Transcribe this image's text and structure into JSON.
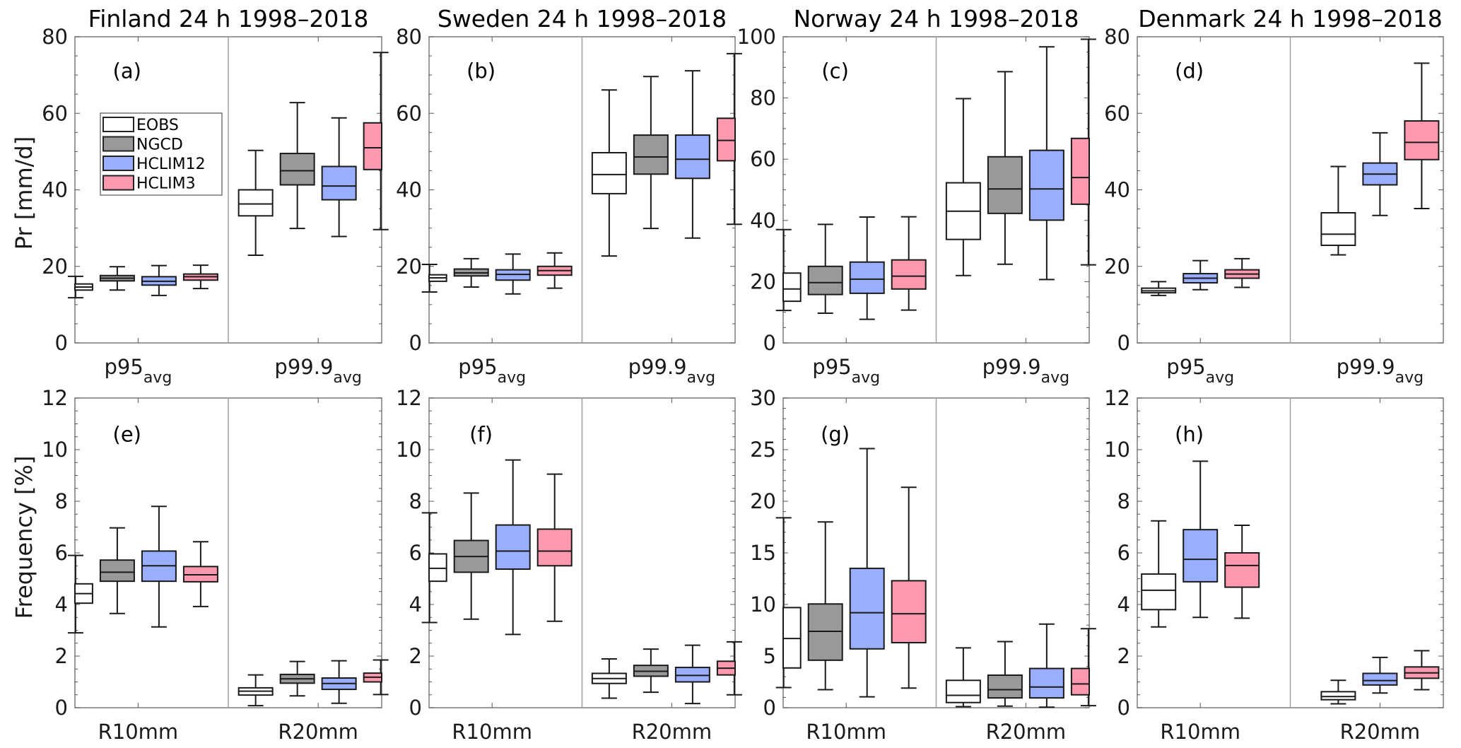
{
  "chart_data": {
    "type": "box",
    "legend": {
      "placement": "inside panel (a), upper-left",
      "entries": [
        {
          "name": "EOBS",
          "color": "#ffffff"
        },
        {
          "name": "NGCD",
          "color": "#999999"
        },
        {
          "name": "HCLIM12",
          "color": "#99aefc"
        },
        {
          "name": "HCLIM3",
          "color": "#fd99ae"
        }
      ]
    },
    "series_colors": {
      "EOBS": "#ffffff",
      "NGCD": "#999999",
      "HCLIM12": "#99aefc",
      "HCLIM3": "#fd99ae"
    },
    "row_ylabels": [
      "Pr [mm/d]",
      "Frequency [%]"
    ],
    "panels": [
      {
        "letter": "(a)",
        "title": "Finland 24 h 1998–2018",
        "row": 0,
        "col": 0,
        "ylim": [
          0,
          80
        ],
        "yticks": [
          0,
          20,
          40,
          60,
          80
        ],
        "minor_step": 5,
        "categories": [
          {
            "main": "p95",
            "sub": "avg"
          },
          {
            "main": "p99.9",
            "sub": "avg"
          }
        ],
        "groups": [
          [
            {
              "series": "EOBS",
              "min": 11.8,
              "q1": 13.8,
              "median": 14.6,
              "q3": 15.4,
              "max": 17.4
            },
            {
              "series": "NGCD",
              "min": 13.8,
              "q1": 16.2,
              "median": 16.9,
              "q3": 17.6,
              "max": 19.9
            },
            {
              "series": "HCLIM12",
              "min": 12.4,
              "q1": 15.1,
              "median": 16.1,
              "q3": 17.3,
              "max": 20.2
            },
            {
              "series": "HCLIM3",
              "min": 14.2,
              "q1": 16.4,
              "median": 17.3,
              "q3": 18.0,
              "max": 20.3
            }
          ],
          [
            {
              "series": "EOBS",
              "min": 22.9,
              "q1": 33.2,
              "median": 36.3,
              "q3": 40.0,
              "max": 50.3
            },
            {
              "series": "NGCD",
              "min": 29.9,
              "q1": 41.3,
              "median": 45.0,
              "q3": 49.5,
              "max": 62.8
            },
            {
              "series": "HCLIM12",
              "min": 27.8,
              "q1": 37.4,
              "median": 41.0,
              "q3": 46.1,
              "max": 58.8
            },
            {
              "series": "HCLIM3",
              "min": 29.6,
              "q1": 45.3,
              "median": 51.0,
              "q3": 57.5,
              "max": 75.9
            }
          ]
        ]
      },
      {
        "letter": "(b)",
        "title": "Sweden 24 h 1998–2018",
        "row": 0,
        "col": 1,
        "ylim": [
          0,
          80
        ],
        "yticks": [
          0,
          20,
          40,
          60,
          80
        ],
        "minor_step": 5,
        "categories": [
          {
            "main": "p95",
            "sub": "avg"
          },
          {
            "main": "p99.9",
            "sub": "avg"
          }
        ],
        "groups": [
          [
            {
              "series": "EOBS",
              "min": 13.3,
              "q1": 16.1,
              "median": 17.0,
              "q3": 17.8,
              "max": 20.5
            },
            {
              "series": "NGCD",
              "min": 14.6,
              "q1": 17.5,
              "median": 18.3,
              "q3": 19.3,
              "max": 22.0
            },
            {
              "series": "HCLIM12",
              "min": 12.8,
              "q1": 16.4,
              "median": 17.9,
              "q3": 19.1,
              "max": 23.2
            },
            {
              "series": "HCLIM3",
              "min": 14.3,
              "q1": 17.7,
              "median": 18.9,
              "q3": 20.0,
              "max": 23.5
            }
          ],
          [
            {
              "series": "EOBS",
              "min": 22.7,
              "q1": 39.0,
              "median": 44.0,
              "q3": 49.7,
              "max": 66.1
            },
            {
              "series": "NGCD",
              "min": 29.9,
              "q1": 44.1,
              "median": 48.6,
              "q3": 54.3,
              "max": 69.6
            },
            {
              "series": "HCLIM12",
              "min": 27.4,
              "q1": 43.0,
              "median": 48.0,
              "q3": 54.3,
              "max": 71.1
            },
            {
              "series": "HCLIM3",
              "min": 31.0,
              "q1": 47.6,
              "median": 52.9,
              "q3": 58.7,
              "max": 75.6
            }
          ]
        ]
      },
      {
        "letter": "(c)",
        "title": "Norway 24 h 1998–2018",
        "row": 0,
        "col": 2,
        "ylim": [
          0,
          100
        ],
        "yticks": [
          0,
          20,
          40,
          60,
          80,
          100
        ],
        "minor_step": 5,
        "categories": [
          {
            "main": "p95",
            "sub": "avg"
          },
          {
            "main": "p99.9",
            "sub": "avg"
          }
        ],
        "groups": [
          [
            {
              "series": "EOBS",
              "min": 10.6,
              "q1": 13.6,
              "median": 17.6,
              "q3": 22.8,
              "max": 37.0
            },
            {
              "series": "NGCD",
              "min": 9.7,
              "q1": 15.8,
              "median": 19.7,
              "q3": 25.0,
              "max": 38.7
            },
            {
              "series": "HCLIM12",
              "min": 7.7,
              "q1": 16.2,
              "median": 20.8,
              "q3": 26.4,
              "max": 41.1
            },
            {
              "series": "HCLIM3",
              "min": 10.7,
              "q1": 17.6,
              "median": 21.8,
              "q3": 27.1,
              "max": 41.2
            }
          ],
          [
            {
              "series": "EOBS",
              "min": 22.0,
              "q1": 33.8,
              "median": 43.0,
              "q3": 52.3,
              "max": 79.8
            },
            {
              "series": "NGCD",
              "min": 25.7,
              "q1": 42.3,
              "median": 50.3,
              "q3": 60.8,
              "max": 88.6
            },
            {
              "series": "HCLIM12",
              "min": 20.7,
              "q1": 40.1,
              "median": 50.3,
              "q3": 62.9,
              "max": 96.7
            },
            {
              "series": "HCLIM3",
              "min": 25.5,
              "q1": 45.3,
              "median": 54.0,
              "q3": 66.8,
              "max": 99.2
            }
          ]
        ]
      },
      {
        "letter": "(d)",
        "title": "Denmark 24 h 1998–2018",
        "row": 0,
        "col": 3,
        "ylim": [
          0,
          80
        ],
        "yticks": [
          0,
          20,
          40,
          60,
          80
        ],
        "minor_step": 5,
        "categories": [
          {
            "main": "p95",
            "sub": "avg"
          },
          {
            "main": "p99.9",
            "sub": "avg"
          }
        ],
        "groups": [
          [
            {
              "series": "EOBS",
              "min": 12.4,
              "q1": 13.1,
              "median": 13.6,
              "q3": 14.3,
              "max": 16.0
            },
            {
              "series": "HCLIM12",
              "min": 13.9,
              "q1": 15.7,
              "median": 16.9,
              "q3": 18.1,
              "max": 21.5
            },
            {
              "series": "HCLIM3",
              "min": 14.5,
              "q1": 16.9,
              "median": 18.0,
              "q3": 19.1,
              "max": 22.0
            }
          ],
          [
            {
              "series": "EOBS",
              "min": 23.0,
              "q1": 25.5,
              "median": 28.4,
              "q3": 34.0,
              "max": 46.1
            },
            {
              "series": "HCLIM12",
              "min": 33.3,
              "q1": 41.3,
              "median": 44.1,
              "q3": 47.0,
              "max": 54.9
            },
            {
              "series": "HCLIM3",
              "min": 35.1,
              "q1": 47.9,
              "median": 52.4,
              "q3": 58.0,
              "max": 73.1
            }
          ]
        ]
      },
      {
        "letter": "(e)",
        "title": "",
        "row": 1,
        "col": 0,
        "ylim": [
          0,
          12
        ],
        "yticks": [
          0,
          2,
          4,
          6,
          8,
          10,
          12
        ],
        "minor_step": 0.5,
        "categories": [
          {
            "main": "R10mm",
            "sub": ""
          },
          {
            "main": "R20mm",
            "sub": ""
          }
        ],
        "groups": [
          [
            {
              "series": "EOBS",
              "min": 2.9,
              "q1": 4.05,
              "median": 4.42,
              "q3": 4.8,
              "max": 5.9
            },
            {
              "series": "NGCD",
              "min": 3.65,
              "q1": 4.9,
              "median": 5.25,
              "q3": 5.72,
              "max": 6.97
            },
            {
              "series": "HCLIM12",
              "min": 3.13,
              "q1": 4.9,
              "median": 5.5,
              "q3": 6.07,
              "max": 7.8
            },
            {
              "series": "HCLIM3",
              "min": 3.92,
              "q1": 4.88,
              "median": 5.15,
              "q3": 5.47,
              "max": 6.43
            }
          ],
          [
            {
              "series": "EOBS",
              "min": 0.08,
              "q1": 0.49,
              "median": 0.64,
              "q3": 0.77,
              "max": 1.27
            },
            {
              "series": "NGCD",
              "min": 0.46,
              "q1": 0.95,
              "median": 1.12,
              "q3": 1.29,
              "max": 1.79
            },
            {
              "series": "HCLIM12",
              "min": 0.17,
              "q1": 0.71,
              "median": 0.94,
              "q3": 1.15,
              "max": 1.82
            },
            {
              "series": "HCLIM3",
              "min": 0.51,
              "q1": 1.0,
              "median": 1.18,
              "q3": 1.34,
              "max": 1.85
            }
          ]
        ]
      },
      {
        "letter": "(f)",
        "title": "",
        "row": 1,
        "col": 1,
        "ylim": [
          0,
          12
        ],
        "yticks": [
          0,
          2,
          4,
          6,
          8,
          10,
          12
        ],
        "minor_step": 0.5,
        "categories": [
          {
            "main": "R10mm",
            "sub": ""
          },
          {
            "main": "R20mm",
            "sub": ""
          }
        ],
        "groups": [
          [
            {
              "series": "EOBS",
              "min": 3.3,
              "q1": 4.9,
              "median": 5.4,
              "q3": 5.96,
              "max": 7.55
            },
            {
              "series": "NGCD",
              "min": 3.43,
              "q1": 5.25,
              "median": 5.86,
              "q3": 6.48,
              "max": 8.32
            },
            {
              "series": "HCLIM12",
              "min": 2.84,
              "q1": 5.37,
              "median": 6.07,
              "q3": 7.08,
              "max": 9.6
            },
            {
              "series": "HCLIM3",
              "min": 3.35,
              "q1": 5.5,
              "median": 6.07,
              "q3": 6.92,
              "max": 9.05
            }
          ],
          [
            {
              "series": "EOBS",
              "min": 0.37,
              "q1": 0.94,
              "median": 1.13,
              "q3": 1.33,
              "max": 1.89
            },
            {
              "series": "NGCD",
              "min": 0.6,
              "q1": 1.22,
              "median": 1.41,
              "q3": 1.64,
              "max": 2.27
            },
            {
              "series": "HCLIM12",
              "min": 0.16,
              "q1": 1.0,
              "median": 1.25,
              "q3": 1.56,
              "max": 2.42
            },
            {
              "series": "HCLIM3",
              "min": 0.5,
              "q1": 1.27,
              "median": 1.53,
              "q3": 1.8,
              "max": 2.55
            }
          ]
        ]
      },
      {
        "letter": "(g)",
        "title": "",
        "row": 1,
        "col": 2,
        "ylim": [
          0,
          30
        ],
        "yticks": [
          0,
          5,
          10,
          15,
          20,
          25,
          30
        ],
        "minor_step": 1,
        "categories": [
          {
            "main": "R10mm",
            "sub": ""
          },
          {
            "main": "R20mm",
            "sub": ""
          }
        ],
        "groups": [
          [
            {
              "series": "EOBS",
              "min": 1.95,
              "q1": 3.85,
              "median": 6.7,
              "q3": 9.7,
              "max": 18.4
            },
            {
              "series": "NGCD",
              "min": 1.75,
              "q1": 4.6,
              "median": 7.4,
              "q3": 10.05,
              "max": 18.0
            },
            {
              "series": "HCLIM12",
              "min": 1.05,
              "q1": 5.7,
              "median": 9.2,
              "q3": 13.5,
              "max": 25.1
            },
            {
              "series": "HCLIM3",
              "min": 1.9,
              "q1": 6.3,
              "median": 9.1,
              "q3": 12.3,
              "max": 21.35
            }
          ],
          [
            {
              "series": "EOBS",
              "min": 0.1,
              "q1": 0.5,
              "median": 1.2,
              "q3": 2.65,
              "max": 5.8
            },
            {
              "series": "NGCD",
              "min": 0.15,
              "q1": 0.95,
              "median": 1.75,
              "q3": 3.15,
              "max": 6.4
            },
            {
              "series": "HCLIM12",
              "min": 0.05,
              "q1": 0.95,
              "median": 2.0,
              "q3": 3.8,
              "max": 8.1
            },
            {
              "series": "HCLIM3",
              "min": 0.2,
              "q1": 1.25,
              "median": 2.3,
              "q3": 3.8,
              "max": 7.65
            }
          ]
        ]
      },
      {
        "letter": "(h)",
        "title": "",
        "row": 1,
        "col": 3,
        "ylim": [
          0,
          12
        ],
        "yticks": [
          0,
          2,
          4,
          6,
          8,
          10,
          12
        ],
        "minor_step": 0.5,
        "categories": [
          {
            "main": "R10mm",
            "sub": ""
          },
          {
            "main": "R20mm",
            "sub": ""
          }
        ],
        "groups": [
          [
            {
              "series": "EOBS",
              "min": 3.13,
              "q1": 3.8,
              "median": 4.55,
              "q3": 5.18,
              "max": 7.24
            },
            {
              "series": "HCLIM12",
              "min": 3.5,
              "q1": 4.88,
              "median": 5.75,
              "q3": 6.9,
              "max": 9.55
            },
            {
              "series": "HCLIM3",
              "min": 3.47,
              "q1": 4.67,
              "median": 5.51,
              "q3": 6.0,
              "max": 7.07
            }
          ],
          [
            {
              "series": "EOBS",
              "min": 0.15,
              "q1": 0.31,
              "median": 0.43,
              "q3": 0.62,
              "max": 1.06
            },
            {
              "series": "HCLIM12",
              "min": 0.57,
              "q1": 0.88,
              "median": 1.05,
              "q3": 1.33,
              "max": 1.95
            },
            {
              "series": "HCLIM3",
              "min": 0.7,
              "q1": 1.14,
              "median": 1.35,
              "q3": 1.58,
              "max": 2.21
            }
          ]
        ]
      }
    ]
  }
}
